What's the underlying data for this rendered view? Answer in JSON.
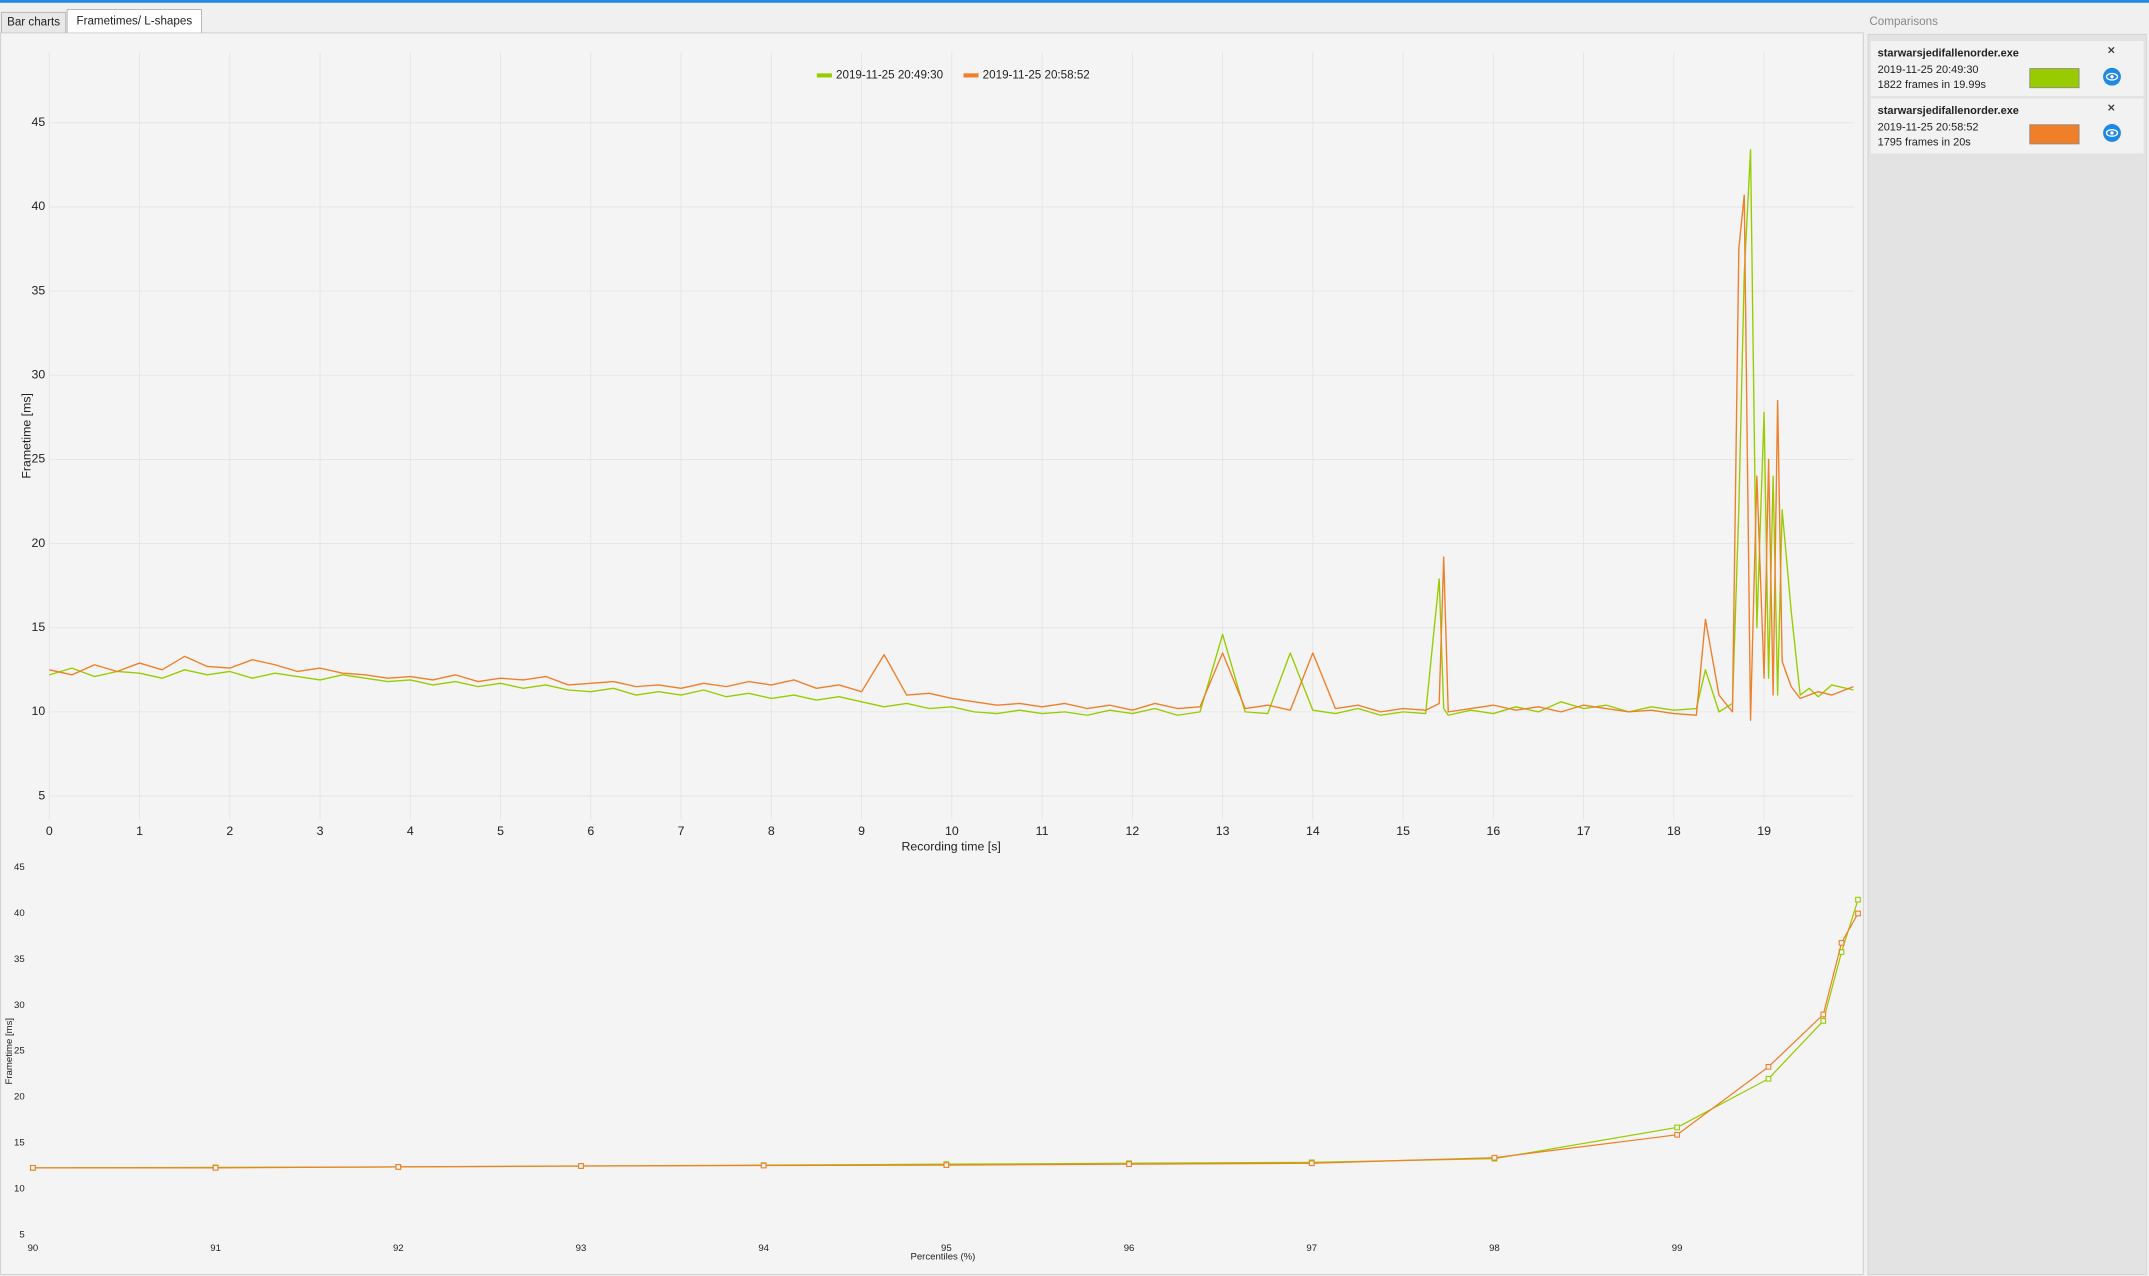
{
  "tabs": [
    "Bar charts",
    "Frametimes/ L-shapes"
  ],
  "sidebar": {
    "title": "Comparisons",
    "items": [
      {
        "name": "starwarsjedifallenorder.exe",
        "date": "2019-11-25 20:49:30",
        "info": "1822 frames in 19.99s",
        "color": "#99cc00"
      },
      {
        "name": "starwarsjedifallenorder.exe",
        "date": "2019-11-25 20:58:52",
        "info": "1795 frames in 20s",
        "color": "#f07f2a"
      }
    ]
  },
  "chart_data": [
    {
      "type": "line",
      "x_label": "Recording time [s]",
      "y_label": "Frametime [ms]",
      "grid": true,
      "legend": "top",
      "xlim": [
        0,
        20
      ],
      "ylim": [
        3.6,
        49.2
      ],
      "xticks": [
        0,
        1,
        2,
        3,
        4,
        5,
        6,
        7,
        8,
        9,
        10,
        11,
        12,
        13,
        14,
        15,
        16,
        17,
        18,
        19
      ],
      "yticks": [
        5,
        10,
        15,
        20,
        25,
        30,
        35,
        40,
        45
      ],
      "x": [
        0,
        0.25,
        0.5,
        0.75,
        1,
        1.25,
        1.5,
        1.75,
        2,
        2.25,
        2.5,
        2.75,
        3,
        3.25,
        3.5,
        3.75,
        4,
        4.25,
        4.5,
        4.75,
        5,
        5.25,
        5.5,
        5.75,
        6,
        6.25,
        6.5,
        6.75,
        7,
        7.25,
        7.5,
        7.75,
        8,
        8.25,
        8.5,
        8.75,
        9,
        9.25,
        9.5,
        9.75,
        10,
        10.25,
        10.5,
        10.75,
        11,
        11.25,
        11.5,
        11.75,
        12,
        12.25,
        12.5,
        12.75,
        13,
        13.25,
        13.5,
        13.75,
        14,
        14.25,
        14.5,
        14.75,
        15,
        15.25,
        15.4,
        15.45,
        15.5,
        15.75,
        16,
        16.25,
        16.5,
        16.75,
        17,
        17.25,
        17.5,
        17.75,
        18,
        18.25,
        18.35,
        18.5,
        18.65,
        18.72,
        18.78,
        18.85,
        18.92,
        19,
        19.05,
        19.1,
        19.15,
        19.2,
        19.3,
        19.4,
        19.5,
        19.6,
        19.75,
        19.99
      ],
      "series": [
        {
          "name": "2019-11-25 20:49:30",
          "color": "#99cc00",
          "values": [
            12.2,
            12.6,
            12.1,
            12.4,
            12.3,
            12.0,
            12.5,
            12.2,
            12.4,
            12.0,
            12.3,
            12.1,
            11.9,
            12.2,
            12.0,
            11.8,
            11.9,
            11.6,
            11.8,
            11.5,
            11.7,
            11.4,
            11.6,
            11.3,
            11.2,
            11.4,
            11.0,
            11.2,
            11.0,
            11.3,
            10.9,
            11.1,
            10.8,
            11.0,
            10.7,
            10.9,
            10.6,
            10.3,
            10.5,
            10.2,
            10.3,
            10.0,
            9.9,
            10.1,
            9.9,
            10.0,
            9.8,
            10.1,
            9.9,
            10.2,
            9.8,
            10.0,
            14.6,
            10.0,
            9.9,
            13.5,
            10.1,
            9.9,
            10.2,
            9.8,
            10.0,
            9.9,
            17.9,
            10.2,
            9.8,
            10.1,
            9.9,
            10.3,
            10.0,
            10.6,
            10.2,
            10.4,
            10.0,
            10.3,
            10.1,
            10.2,
            12.5,
            10.0,
            10.5,
            22,
            36,
            43.4,
            15,
            27.8,
            12,
            24,
            11,
            22,
            16,
            11,
            11.4,
            10.9,
            11.6,
            11.3
          ]
        },
        {
          "name": "2019-11-25 20:58:52",
          "color": "#f07f2a",
          "values": [
            12.5,
            12.2,
            12.8,
            12.4,
            12.9,
            12.5,
            13.3,
            12.7,
            12.6,
            13.1,
            12.8,
            12.4,
            12.6,
            12.3,
            12.2,
            12.0,
            12.1,
            11.9,
            12.2,
            11.8,
            12.0,
            11.9,
            12.1,
            11.6,
            11.7,
            11.8,
            11.5,
            11.6,
            11.4,
            11.7,
            11.5,
            11.8,
            11.6,
            11.9,
            11.4,
            11.6,
            11.2,
            13.4,
            11.0,
            11.1,
            10.8,
            10.6,
            10.4,
            10.5,
            10.3,
            10.5,
            10.2,
            10.4,
            10.1,
            10.5,
            10.2,
            10.3,
            13.5,
            10.2,
            10.4,
            10.1,
            13.5,
            10.2,
            10.4,
            10.0,
            10.2,
            10.1,
            10.5,
            19.2,
            10.0,
            10.2,
            10.4,
            10.1,
            10.3,
            10.0,
            10.4,
            10.2,
            10.0,
            10.1,
            9.9,
            9.8,
            15.5,
            11,
            10.0,
            37.5,
            40.7,
            9.5,
            24,
            12,
            25,
            11,
            28.5,
            13,
            11.5,
            10.8,
            11.0,
            11.2,
            11.0,
            11.5
          ]
        }
      ]
    },
    {
      "type": "line",
      "x_label": "Percentiles (%)",
      "y_label": "Frametime [ms]",
      "grid": false,
      "markers": true,
      "xlim": [
        90,
        100
      ],
      "ylim": [
        5,
        45
      ],
      "xticks": [
        90,
        91,
        92,
        93,
        94,
        95,
        96,
        97,
        98,
        99
      ],
      "yticks": [
        5,
        10,
        15,
        20,
        25,
        30,
        35,
        40,
        45
      ],
      "x": [
        90,
        91,
        92,
        93,
        94,
        95,
        96,
        97,
        98,
        99,
        99.5,
        99.8,
        99.9,
        99.99
      ],
      "series": [
        {
          "name": "2019-11-25 20:49:30",
          "color": "#99cc00",
          "values": [
            12.3,
            12.35,
            12.4,
            12.5,
            12.6,
            12.7,
            12.8,
            12.9,
            13.3,
            16.7,
            22,
            28.3,
            35.8,
            41.5
          ]
        },
        {
          "name": "2019-11-25 20:58:52",
          "color": "#f07f2a",
          "values": [
            12.3,
            12.3,
            12.4,
            12.5,
            12.55,
            12.6,
            12.7,
            12.8,
            13.4,
            15.9,
            23.3,
            29,
            36.8,
            40
          ]
        }
      ]
    }
  ]
}
